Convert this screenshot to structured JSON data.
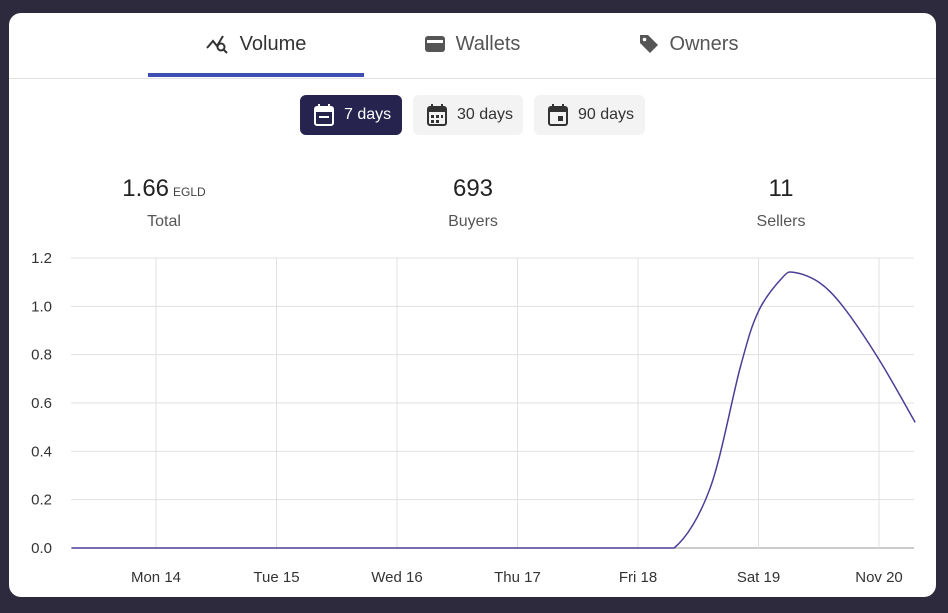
{
  "tabs": [
    {
      "label": "Volume",
      "icon": "chart-search-icon",
      "active": true
    },
    {
      "label": "Wallets",
      "icon": "wallet-icon",
      "active": false
    },
    {
      "label": "Owners",
      "icon": "tag-icon",
      "active": false
    }
  ],
  "ranges": [
    {
      "label": "7 days",
      "icon": "calendar-icon",
      "active": true
    },
    {
      "label": "30 days",
      "icon": "calendar-icon",
      "active": false
    },
    {
      "label": "90 days",
      "icon": "calendar-icon",
      "active": false
    }
  ],
  "stats": {
    "total": {
      "value": "1.66",
      "unit": "EGLD",
      "label": "Total"
    },
    "buyers": {
      "value": "693",
      "label": "Buyers"
    },
    "sellers": {
      "value": "11",
      "label": "Sellers"
    }
  },
  "colors": {
    "accent": "#3e4fb3",
    "active_range": "#26234f",
    "line": "#4a3f96"
  },
  "chart_data": {
    "type": "line",
    "x": [
      "Mon 14",
      "Tue 15",
      "Wed 16",
      "Thu 17",
      "Fri 18",
      "Sat 19",
      "Nov 20"
    ],
    "yticks": [
      "0.0",
      "0.2",
      "0.4",
      "0.6",
      "0.8",
      "1.0",
      "1.2"
    ],
    "ylim": [
      0,
      1.2
    ],
    "grid": true,
    "series": [
      {
        "points": [
          [
            -0.7,
            0
          ],
          [
            0,
            0
          ],
          [
            1,
            0
          ],
          [
            2,
            0
          ],
          [
            3,
            0
          ],
          [
            4,
            0
          ],
          [
            4.3,
            0
          ],
          [
            4.6,
            0.25
          ],
          [
            4.85,
            0.75
          ],
          [
            5.0,
            0.98
          ],
          [
            5.2,
            1.12
          ],
          [
            5.3,
            1.14
          ],
          [
            5.5,
            1.1
          ],
          [
            5.7,
            1.0
          ],
          [
            6.0,
            0.78
          ],
          [
            6.3,
            0.52
          ]
        ]
      }
    ]
  }
}
